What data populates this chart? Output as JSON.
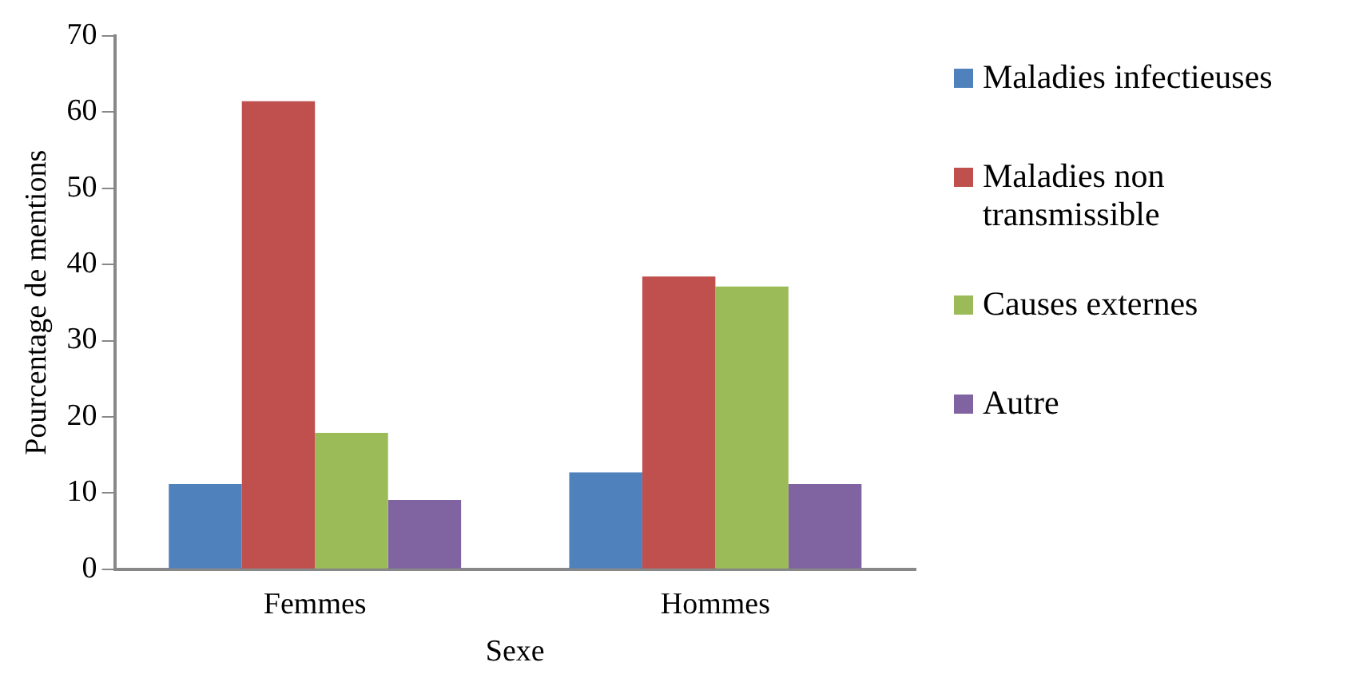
{
  "chart_data": {
    "type": "bar",
    "xlabel": "Sexe",
    "ylabel": "Pourcentage de mentions",
    "categories": [
      "Femmes",
      "Hommes"
    ],
    "series": [
      {
        "name": "Maladies infectieuses",
        "color": "#4f81bd",
        "values": [
          11.2,
          12.7
        ]
      },
      {
        "name": "Maladies non transmissible",
        "color": "#c0504d",
        "values": [
          61.4,
          38.4
        ]
      },
      {
        "name": "Causes externes",
        "color": "#9bbb59",
        "values": [
          17.9,
          37.1
        ]
      },
      {
        "name": "Autre",
        "color": "#8064a2",
        "values": [
          9.1,
          11.2
        ]
      }
    ],
    "ylim": [
      0,
      70
    ],
    "yticks": [
      0,
      10,
      20,
      30,
      40,
      50,
      60,
      70
    ],
    "grid": false,
    "legend": "right"
  }
}
